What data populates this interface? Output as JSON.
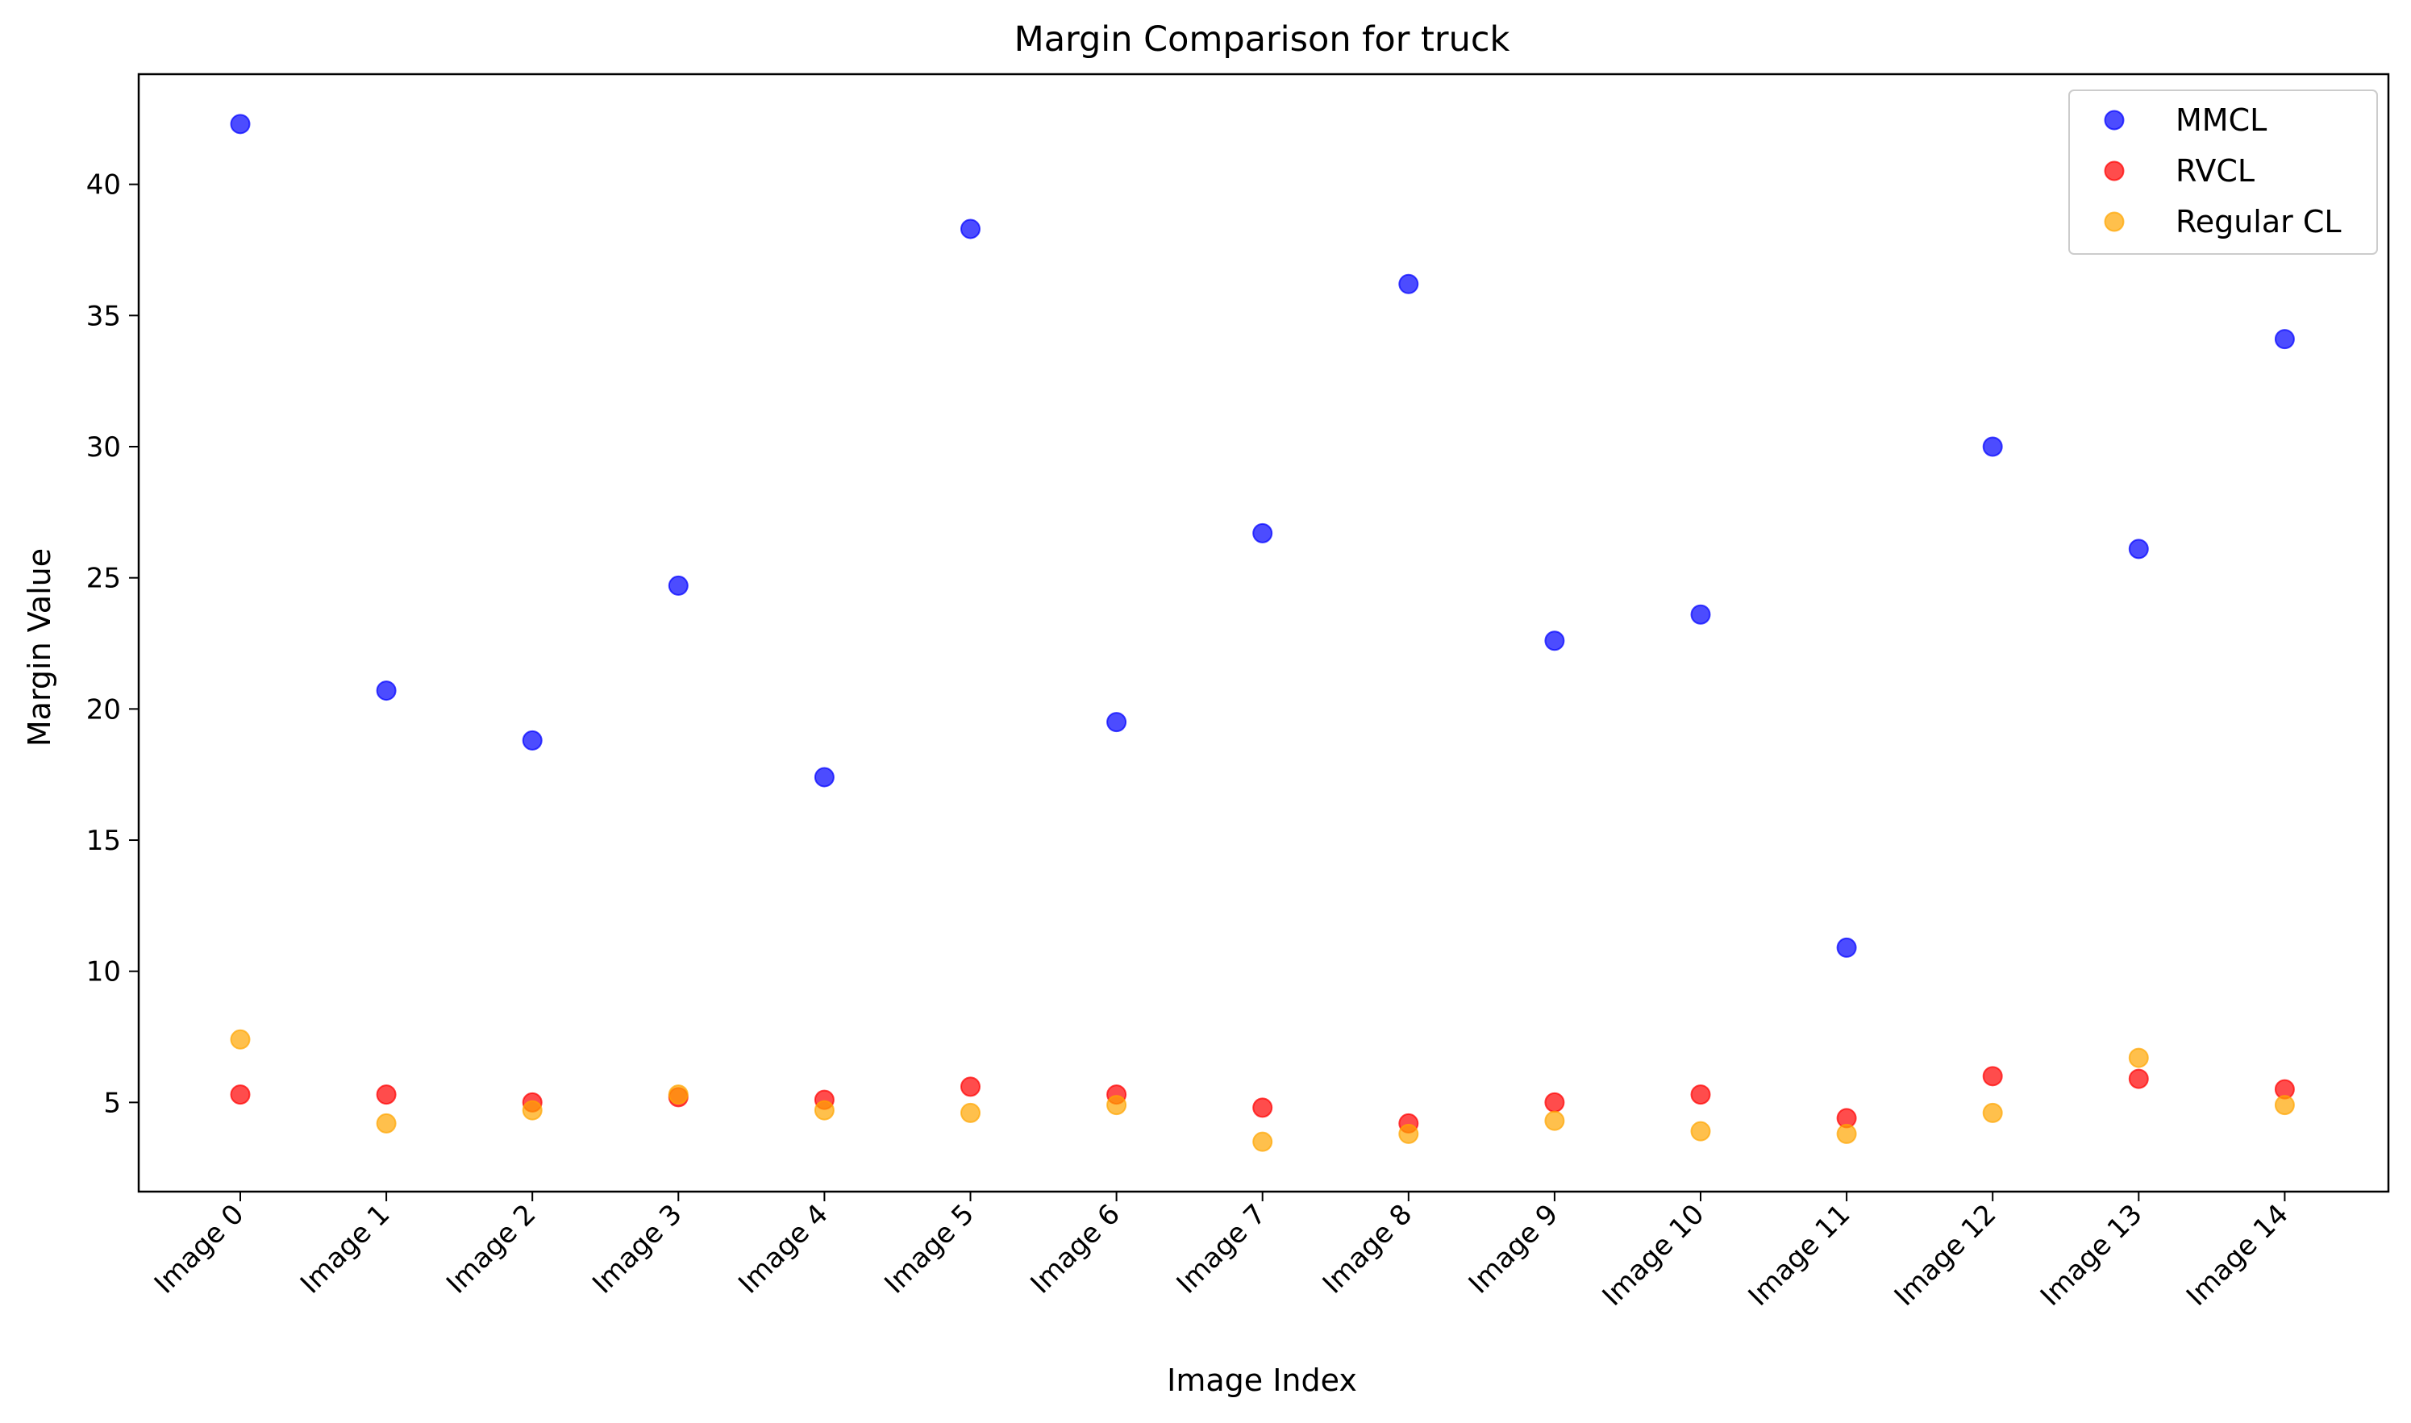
{
  "chart_data": {
    "type": "scatter",
    "title": "Margin Comparison for truck",
    "xlabel": "Image Index",
    "ylabel": "Margin Value",
    "categories": [
      "Image 0",
      "Image 1",
      "Image 2",
      "Image 3",
      "Image 4",
      "Image 5",
      "Image 6",
      "Image 7",
      "Image 8",
      "Image 9",
      "Image 10",
      "Image 11",
      "Image 12",
      "Image 13",
      "Image 14"
    ],
    "yticks": [
      5,
      10,
      15,
      20,
      25,
      30,
      35,
      40
    ],
    "ylim": [
      1.6,
      44.2
    ],
    "grid": false,
    "legend_position": "top-right",
    "series": [
      {
        "name": "MMCL",
        "color": "#0000ff",
        "values": [
          42.3,
          20.7,
          18.8,
          24.7,
          17.4,
          38.3,
          19.5,
          26.7,
          36.2,
          22.6,
          23.6,
          10.9,
          30.0,
          26.1,
          34.1
        ]
      },
      {
        "name": "RVCL",
        "color": "#ff0000",
        "values": [
          5.3,
          5.3,
          5.0,
          5.2,
          5.1,
          5.6,
          5.3,
          4.8,
          4.2,
          5.0,
          5.3,
          4.4,
          6.0,
          5.9,
          5.5
        ]
      },
      {
        "name": "Regular CL",
        "color": "#ffa500",
        "values": [
          7.4,
          4.2,
          4.7,
          5.3,
          4.7,
          4.6,
          4.9,
          3.5,
          3.8,
          4.3,
          3.9,
          3.8,
          4.6,
          6.7,
          4.9
        ]
      }
    ]
  }
}
